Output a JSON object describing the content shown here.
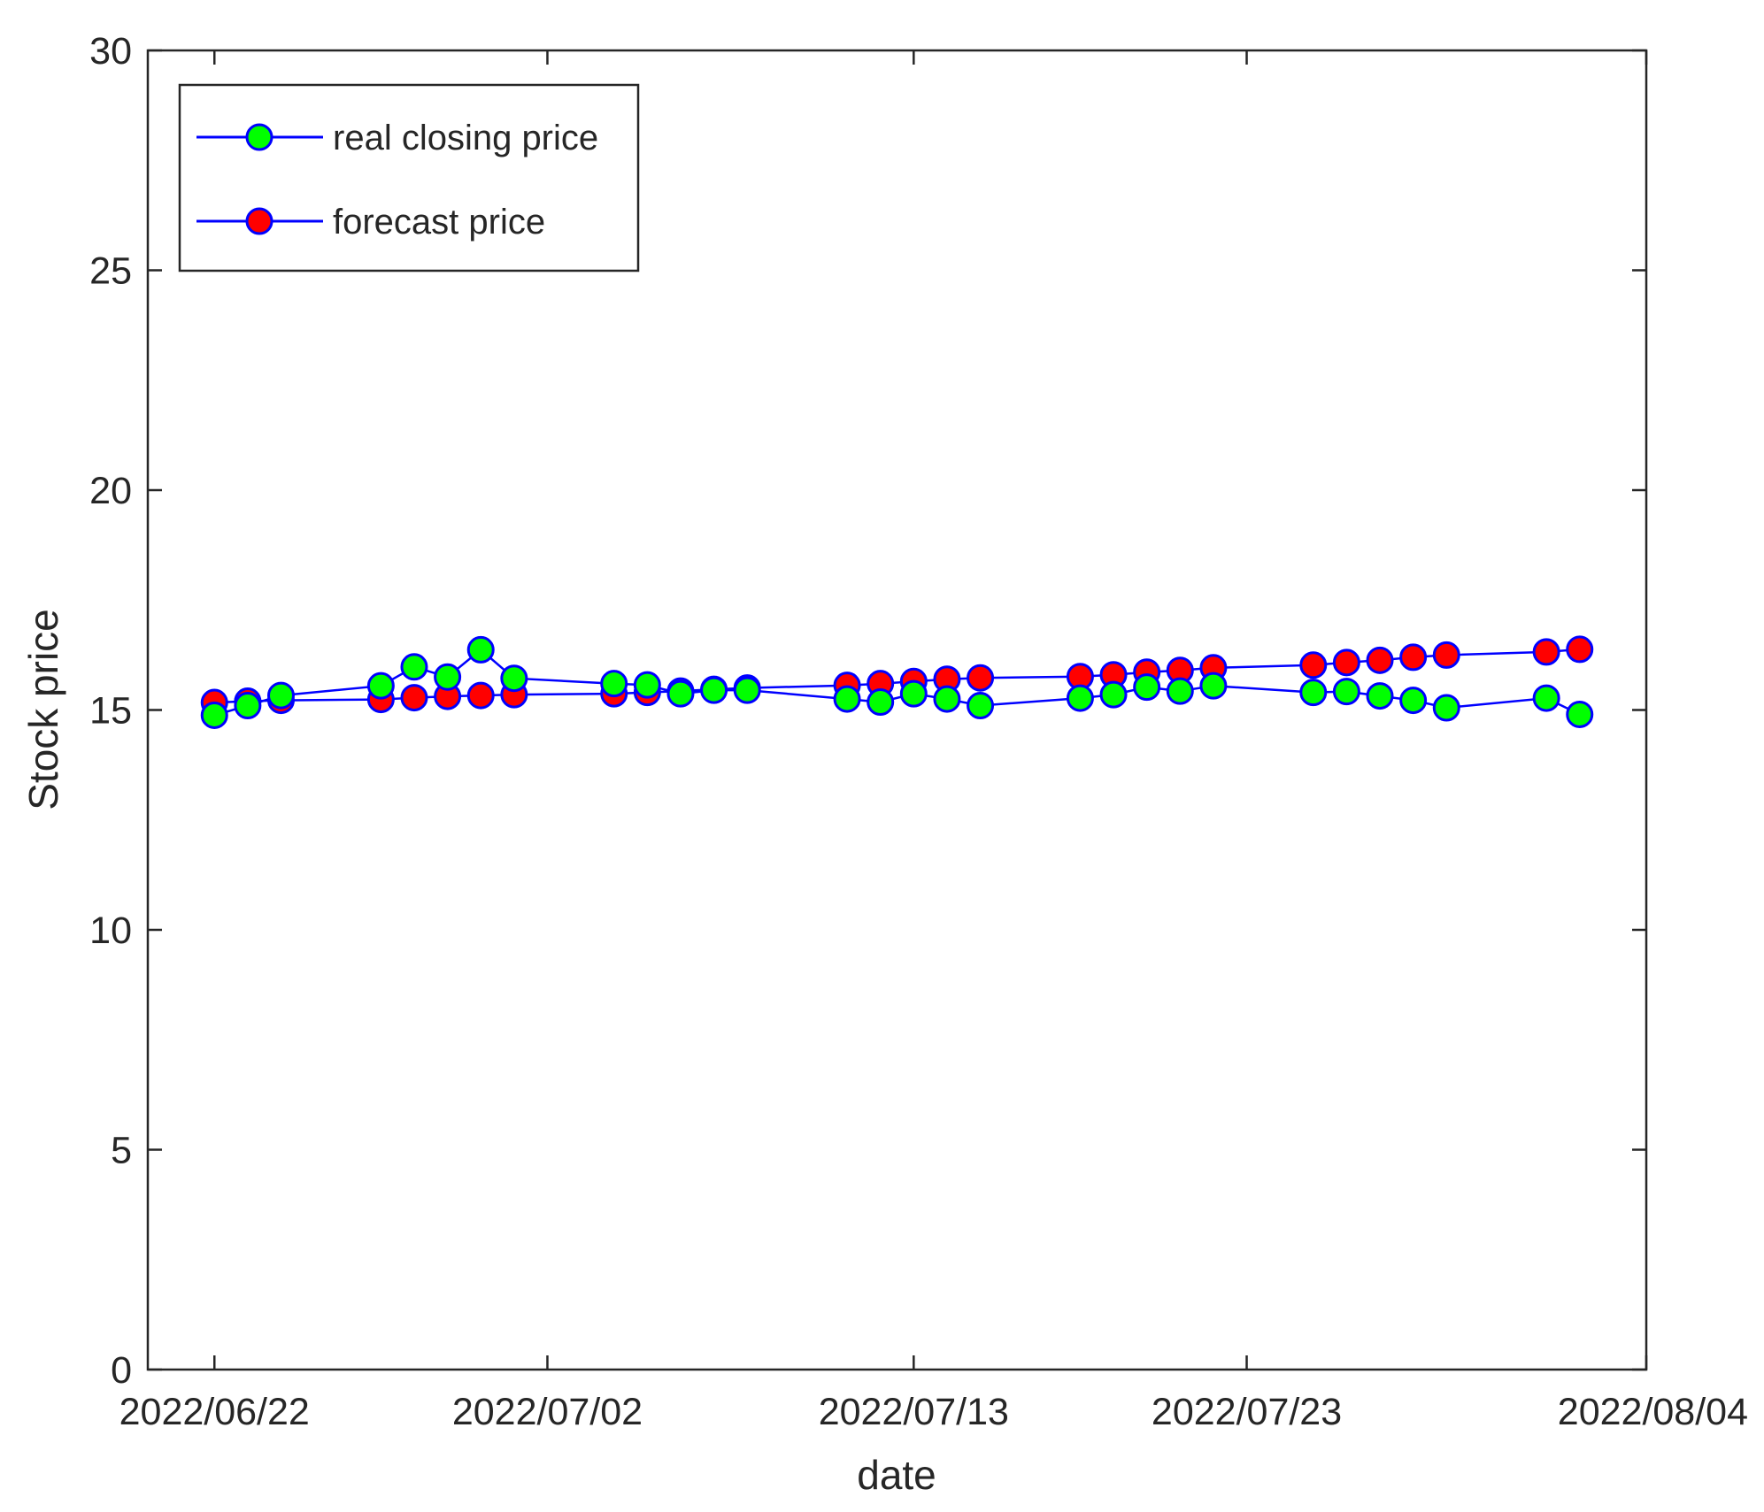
{
  "chart_data": {
    "type": "line",
    "title": "",
    "xlabel": "date",
    "ylabel": "Stock price",
    "ylim": [
      0,
      30
    ],
    "xlim": [
      "2022/06/20",
      "2022/08/04"
    ],
    "yticks": [
      0,
      5,
      10,
      15,
      20,
      25,
      30
    ],
    "xticks": [
      "2022/06/22",
      "2022/07/02",
      "2022/07/13",
      "2022/07/23",
      "2022/08/04"
    ],
    "grid": false,
    "legend_position": "top-left",
    "x": [
      "2022/06/22",
      "2022/06/23",
      "2022/06/24",
      "2022/06/27",
      "2022/06/28",
      "2022/06/29",
      "2022/06/30",
      "2022/07/01",
      "2022/07/04",
      "2022/07/05",
      "2022/07/06",
      "2022/07/07",
      "2022/07/08",
      "2022/07/11",
      "2022/07/12",
      "2022/07/13",
      "2022/07/14",
      "2022/07/15",
      "2022/07/18",
      "2022/07/19",
      "2022/07/20",
      "2022/07/21",
      "2022/07/22",
      "2022/07/25",
      "2022/07/26",
      "2022/07/27",
      "2022/07/28",
      "2022/07/29",
      "2022/08/01",
      "2022/08/02"
    ],
    "series": [
      {
        "name": "real closing price",
        "marker_color": "#00ff00",
        "line_color": "#0000ff",
        "values": [
          14.88,
          15.1,
          15.33,
          15.55,
          15.98,
          15.75,
          16.37,
          15.72,
          15.6,
          15.57,
          15.37,
          15.45,
          15.45,
          15.25,
          15.18,
          15.37,
          15.25,
          15.1,
          15.27,
          15.35,
          15.52,
          15.43,
          15.55,
          15.4,
          15.42,
          15.32,
          15.22,
          15.05,
          15.27,
          14.9
        ]
      },
      {
        "name": "forecast price",
        "marker_color": "#ff0000",
        "line_color": "#0000ff",
        "values": [
          15.17,
          15.2,
          15.22,
          15.24,
          15.28,
          15.31,
          15.33,
          15.35,
          15.37,
          15.4,
          15.43,
          15.47,
          15.5,
          15.56,
          15.6,
          15.65,
          15.7,
          15.73,
          15.76,
          15.8,
          15.86,
          15.9,
          15.96,
          16.02,
          16.08,
          16.13,
          16.2,
          16.25,
          16.32,
          16.38
        ]
      }
    ]
  }
}
